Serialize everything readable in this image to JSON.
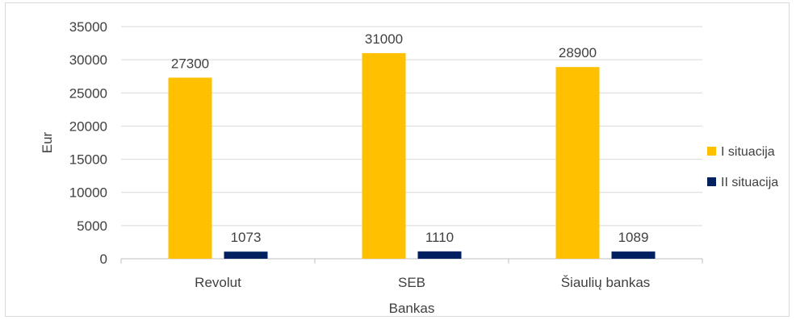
{
  "chart_data": {
    "type": "bar",
    "categories": [
      "Revolut",
      "SEB",
      "Šiaulių bankas"
    ],
    "series": [
      {
        "name": "I situacija",
        "values": [
          27300,
          31000,
          28900
        ],
        "color": "#FFC000"
      },
      {
        "name": "II situacija",
        "values": [
          1073,
          1110,
          1089
        ],
        "color": "#002060"
      }
    ],
    "xlabel": "Bankas",
    "ylabel": "Eur",
    "ylim": [
      0,
      35000
    ],
    "yticks": [
      0,
      5000,
      10000,
      15000,
      20000,
      25000,
      30000,
      35000
    ],
    "grid": true,
    "legend": "right",
    "data_labels": true
  }
}
